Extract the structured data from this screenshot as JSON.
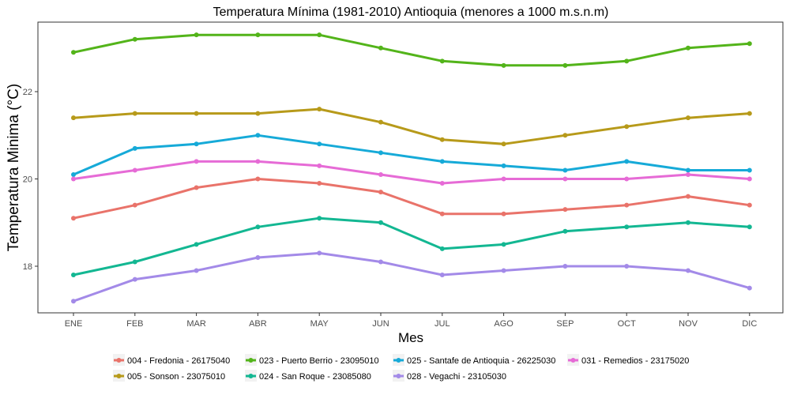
{
  "chart_data": {
    "type": "line",
    "title": "Temperatura Mínima (1981-2010) Antioquia (menores a 1000 m.s.n.m)",
    "xlabel": "Mes",
    "ylabel": "Temperatura Minima (°C)",
    "categories": [
      "ENE",
      "FEB",
      "MAR",
      "ABR",
      "MAY",
      "JUN",
      "JUL",
      "AGO",
      "SEP",
      "OCT",
      "NOV",
      "DIC"
    ],
    "ylim": [
      16.9,
      23.5
    ],
    "yticks": [
      18,
      20,
      22
    ],
    "grid": false,
    "legend_position": "bottom",
    "series": [
      {
        "name": "004 - Fredonia - 26175040",
        "color": "#e9736a",
        "values": [
          19.1,
          19.4,
          19.8,
          20.0,
          19.9,
          19.7,
          19.2,
          19.2,
          19.3,
          19.4,
          19.6,
          19.4
        ]
      },
      {
        "name": "005 - Sonson - 23075010",
        "color": "#b79a1a",
        "values": [
          21.4,
          21.5,
          21.5,
          21.5,
          21.6,
          21.3,
          20.9,
          20.8,
          21.0,
          21.2,
          21.4,
          21.5
        ]
      },
      {
        "name": "023 - Puerto Berrio - 23095010",
        "color": "#53b41a",
        "values": [
          22.9,
          23.2,
          23.3,
          23.3,
          23.3,
          23.0,
          22.7,
          22.6,
          22.6,
          22.7,
          23.0,
          23.1
        ]
      },
      {
        "name": "024 - San Roque - 23085080",
        "color": "#13b792",
        "values": [
          17.8,
          18.1,
          18.5,
          18.9,
          19.1,
          19.0,
          18.4,
          18.5,
          18.8,
          18.9,
          19.0,
          18.9
        ]
      },
      {
        "name": "025 - Santafe de Antioquia - 26225030",
        "color": "#16aad8",
        "values": [
          20.1,
          20.7,
          20.8,
          21.0,
          20.8,
          20.6,
          20.4,
          20.3,
          20.2,
          20.4,
          20.2,
          20.2
        ]
      },
      {
        "name": "028 - Vegachi - 23105030",
        "color": "#a38ae8",
        "values": [
          17.2,
          17.7,
          17.9,
          18.2,
          18.3,
          18.1,
          17.8,
          17.9,
          18.0,
          18.0,
          17.9,
          17.5
        ]
      },
      {
        "name": "031 - Remedios - 23175020",
        "color": "#e66bd6",
        "values": [
          20.0,
          20.2,
          20.4,
          20.4,
          20.3,
          20.1,
          19.9,
          20.0,
          20.0,
          20.0,
          20.1,
          20.0
        ]
      }
    ],
    "legend_order": [
      0,
      2,
      4,
      6,
      1,
      3,
      5
    ]
  }
}
